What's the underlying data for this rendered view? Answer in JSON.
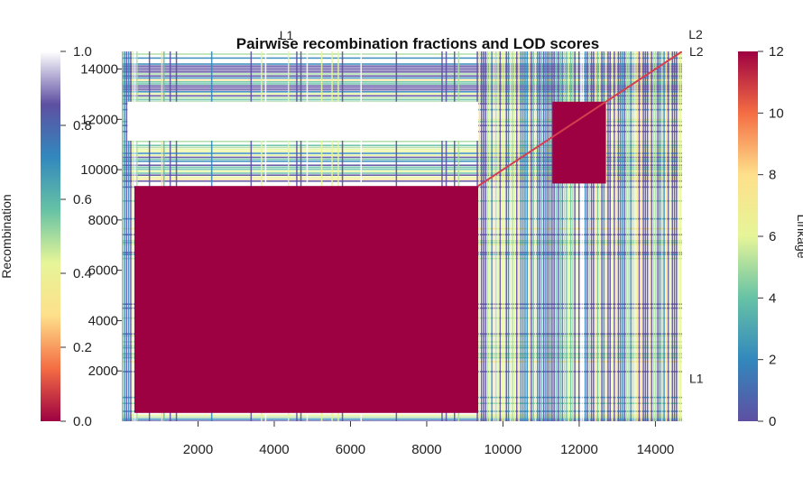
{
  "chart_data": {
    "type": "heatmap",
    "title": "Pairwise recombination fractions and LOD scores",
    "xlabel": "",
    "ylabel": "",
    "xlim": [
      0,
      14700
    ],
    "ylim": [
      0,
      14700
    ],
    "x_ticks": [
      "2000",
      "4000",
      "6000",
      "8000",
      "10000",
      "12000",
      "14000"
    ],
    "x_tick_values": [
      2000,
      4000,
      6000,
      8000,
      10000,
      12000,
      14000
    ],
    "y_ticks": [
      "2000",
      "4000",
      "6000",
      "8000",
      "10000",
      "12000",
      "14000"
    ],
    "y_tick_values": [
      2000,
      4000,
      6000,
      8000,
      10000,
      12000,
      14000
    ],
    "linkage_groups": [
      {
        "name": "L1",
        "start": 0,
        "end": 9350
      },
      {
        "name": "L2",
        "start": 9350,
        "end": 14700
      }
    ],
    "group_labels_top": [
      "L1",
      "L2"
    ],
    "group_labels_right": [
      "L1",
      "L2"
    ],
    "blocks": [
      {
        "x": [
          330,
          9350
        ],
        "y": [
          330,
          9350
        ],
        "value": "high-LOD"
      },
      {
        "x": [
          11300,
          12700
        ],
        "y": [
          9450,
          12700
        ],
        "value": "high-LOD"
      },
      {
        "x": [
          150,
          9350
        ],
        "y": [
          11150,
          12700
        ],
        "value": "unlinked"
      }
    ],
    "legend_left": {
      "title": "Recombination",
      "range": [
        0.0,
        1.0
      ],
      "tick_labels": [
        "0.0",
        "0.2",
        "0.4",
        "0.6",
        "0.8",
        "1.0"
      ],
      "tick_values": [
        0.0,
        0.2,
        0.4,
        0.6,
        0.8,
        1.0
      ],
      "colors_low_to_high": [
        "#9e0142",
        "#f46d43",
        "#fee08b",
        "#e6f598",
        "#66c2a5",
        "#3288bd",
        "#5e4fa2",
        "#ffffff"
      ]
    },
    "legend_right": {
      "title": "Linkage",
      "range": [
        0,
        12
      ],
      "tick_labels": [
        "0",
        "2",
        "4",
        "6",
        "8",
        "10",
        "12"
      ],
      "tick_values": [
        0,
        2,
        4,
        6,
        8,
        10,
        12
      ],
      "colors_low_to_high": [
        "#5e4fa2",
        "#3288bd",
        "#66c2a5",
        "#e6f598",
        "#fee08b",
        "#f46d43",
        "#9e0142"
      ]
    },
    "grid": false
  }
}
